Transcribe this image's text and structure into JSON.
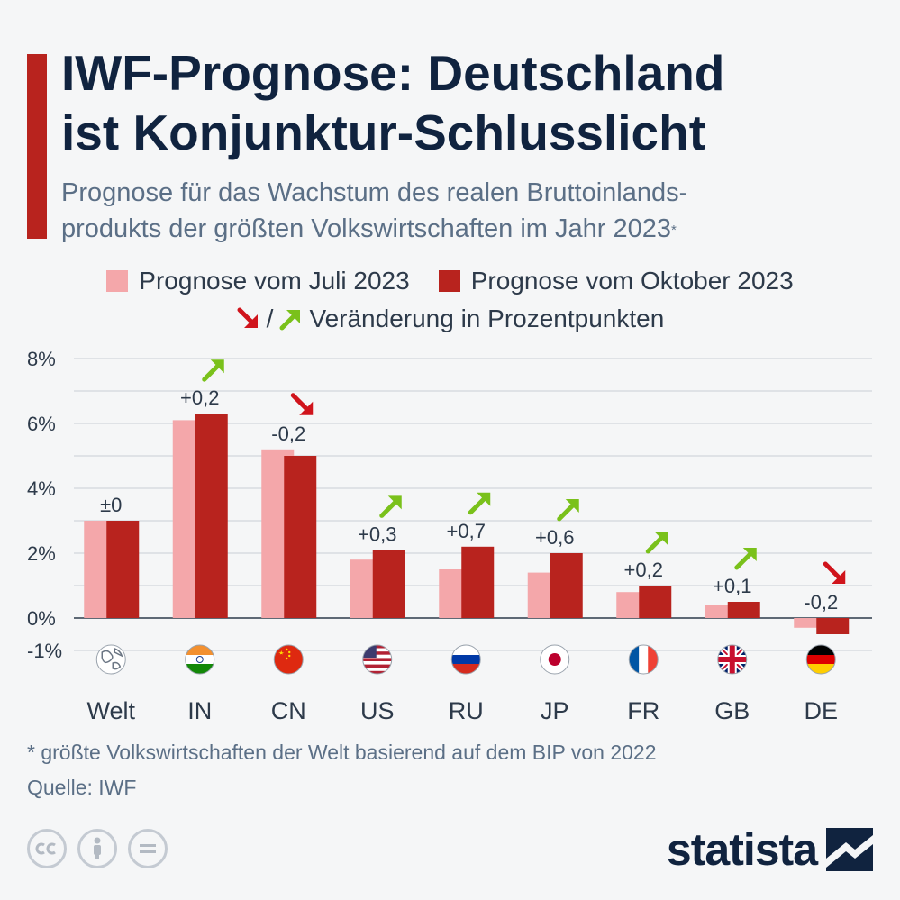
{
  "title_lines": [
    "IWF-Prognose: Deutschland",
    "ist Konjunktur-Schlusslicht"
  ],
  "subtitle_lines": [
    "Prognose für das Wachstum des realen Bruttoinlands-",
    "produkts der größten Volkswirtschaften im Jahr 2023"
  ],
  "subtitle_mark": "*",
  "legend": {
    "juli": "Prognose vom Juli 2023",
    "oktober": "Prognose vom Oktober 2023",
    "slash": "/",
    "change": "Veränderung in Prozentpunkten"
  },
  "footnote": "* größte Volkswirtschaften der Welt basierend auf dem BIP von 2022",
  "source": "Quelle: IWF",
  "logo": "statista",
  "colors": {
    "juli": "#f4a7aa",
    "oktober": "#b8231e",
    "up": "#7ac11b",
    "down": "#d0141c"
  },
  "chart_data": {
    "type": "bar",
    "categories": [
      "Welt",
      "IN",
      "CN",
      "US",
      "RU",
      "JP",
      "FR",
      "GB",
      "DE"
    ],
    "series": [
      {
        "name": "Prognose vom Juli 2023",
        "values": [
          3.0,
          6.1,
          5.2,
          1.8,
          1.5,
          1.4,
          0.8,
          0.4,
          -0.3
        ]
      },
      {
        "name": "Prognose vom Oktober 2023",
        "values": [
          3.0,
          6.3,
          5.0,
          2.1,
          2.2,
          2.0,
          1.0,
          0.5,
          -0.5
        ]
      }
    ],
    "change_labels": [
      "±0",
      "+0,2",
      "-0,2",
      "+0,3",
      "+0,7",
      "+0,6",
      "+0,2",
      "+0,1",
      "-0,2"
    ],
    "change_direction": [
      "none",
      "up",
      "down",
      "up",
      "up",
      "up",
      "up",
      "up",
      "down"
    ],
    "flags": [
      "globe-icon",
      "flag-india-icon",
      "flag-china-icon",
      "flag-usa-icon",
      "flag-russia-icon",
      "flag-japan-icon",
      "flag-france-icon",
      "flag-uk-icon",
      "flag-germany-icon"
    ],
    "y_ticks": [
      8,
      6,
      4,
      2,
      0,
      -1
    ],
    "y_tick_labels": [
      "8%",
      "6%",
      "4%",
      "2%",
      "0%",
      "-1%"
    ],
    "ylim": [
      -1,
      8
    ],
    "grid": true,
    "legend_position": "top"
  }
}
